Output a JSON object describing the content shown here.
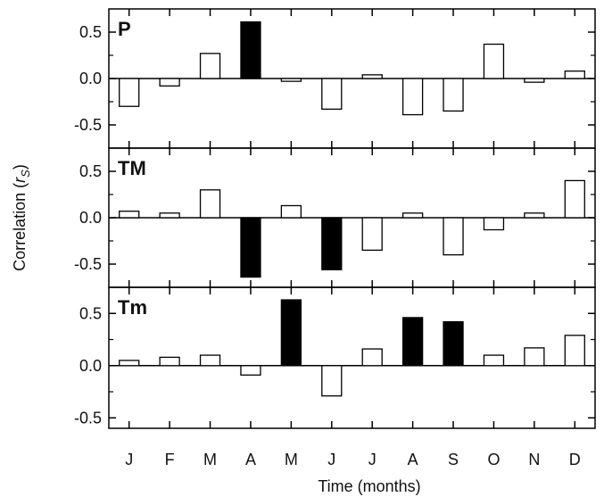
{
  "chart_data": {
    "type": "bar",
    "layout": "three stacked panels sharing x-axis",
    "categories": [
      "J",
      "F",
      "M",
      "A",
      "M",
      "J",
      "J",
      "A",
      "S",
      "O",
      "N",
      "D"
    ],
    "ylabel_prefix": "Correlation (",
    "ylabel_symbol": "r",
    "ylabel_subscript": "S",
    "ylabel_suffix": ")",
    "xlabel": "Time (months)",
    "colors": {
      "significant": "#000000",
      "non_significant": "#ffffff",
      "outline": "#000000"
    },
    "panels": [
      {
        "name": "P",
        "ylim": [
          -0.75,
          0.75
        ],
        "yticks": [
          "0.5",
          "0.0",
          "-0.5"
        ],
        "ytick_values": [
          0.5,
          0.0,
          -0.5
        ],
        "values": [
          -0.3,
          -0.08,
          0.27,
          0.61,
          -0.03,
          -0.33,
          0.04,
          -0.39,
          -0.35,
          0.37,
          -0.04,
          0.08
        ],
        "significant": [
          false,
          false,
          false,
          true,
          false,
          false,
          false,
          false,
          false,
          false,
          false,
          false
        ]
      },
      {
        "name": "TM",
        "ylim": [
          -0.75,
          0.75
        ],
        "yticks": [
          "0.5",
          "0.0",
          "-0.5"
        ],
        "ytick_values": [
          0.5,
          0.0,
          -0.5
        ],
        "values": [
          0.07,
          0.05,
          0.3,
          -0.64,
          0.13,
          -0.56,
          -0.35,
          0.05,
          -0.4,
          -0.13,
          0.05,
          0.4
        ],
        "significant": [
          false,
          false,
          false,
          true,
          false,
          true,
          false,
          false,
          false,
          false,
          false,
          false
        ]
      },
      {
        "name": "Tm",
        "ylim": [
          -0.6,
          0.75
        ],
        "yticks": [
          "0.5",
          "0.0",
          "-0.5"
        ],
        "ytick_values": [
          0.5,
          0.0,
          -0.5
        ],
        "values": [
          0.05,
          0.08,
          0.1,
          -0.09,
          0.63,
          -0.29,
          0.16,
          0.46,
          0.42,
          0.1,
          0.17,
          0.29
        ],
        "significant": [
          false,
          false,
          false,
          false,
          true,
          false,
          false,
          true,
          true,
          false,
          false,
          false
        ]
      }
    ]
  }
}
